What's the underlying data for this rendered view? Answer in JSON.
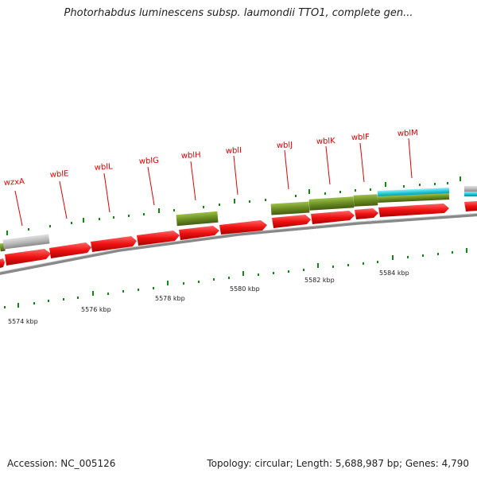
{
  "title": "Photorhabdus luminescens subsp. laumondii TTO1, complete gen...",
  "footer": {
    "accession": "Accession: NC_005126",
    "summary": "Topology: circular; Length: 5,688,987 bp; Genes: 4,790"
  },
  "gene_labels": [
    "wzxA",
    "wblE",
    "wblL",
    "wblG",
    "wblH",
    "wblI",
    "wblJ",
    "wblK",
    "wblF",
    "wblM"
  ],
  "kbp_labels": [
    "5574 kbp",
    "5576 kbp",
    "5578 kbp",
    "5580 kbp",
    "5582 kbp",
    "5584 kbp"
  ],
  "colors": {
    "cds_forward": "#ee1111",
    "cog_green": "#6b8e23",
    "cog_gray": "#bbbbbb",
    "cog_cyan": "#22c8d8",
    "backbone": "#888888",
    "tick": "#118811",
    "label": "#e00000"
  }
}
